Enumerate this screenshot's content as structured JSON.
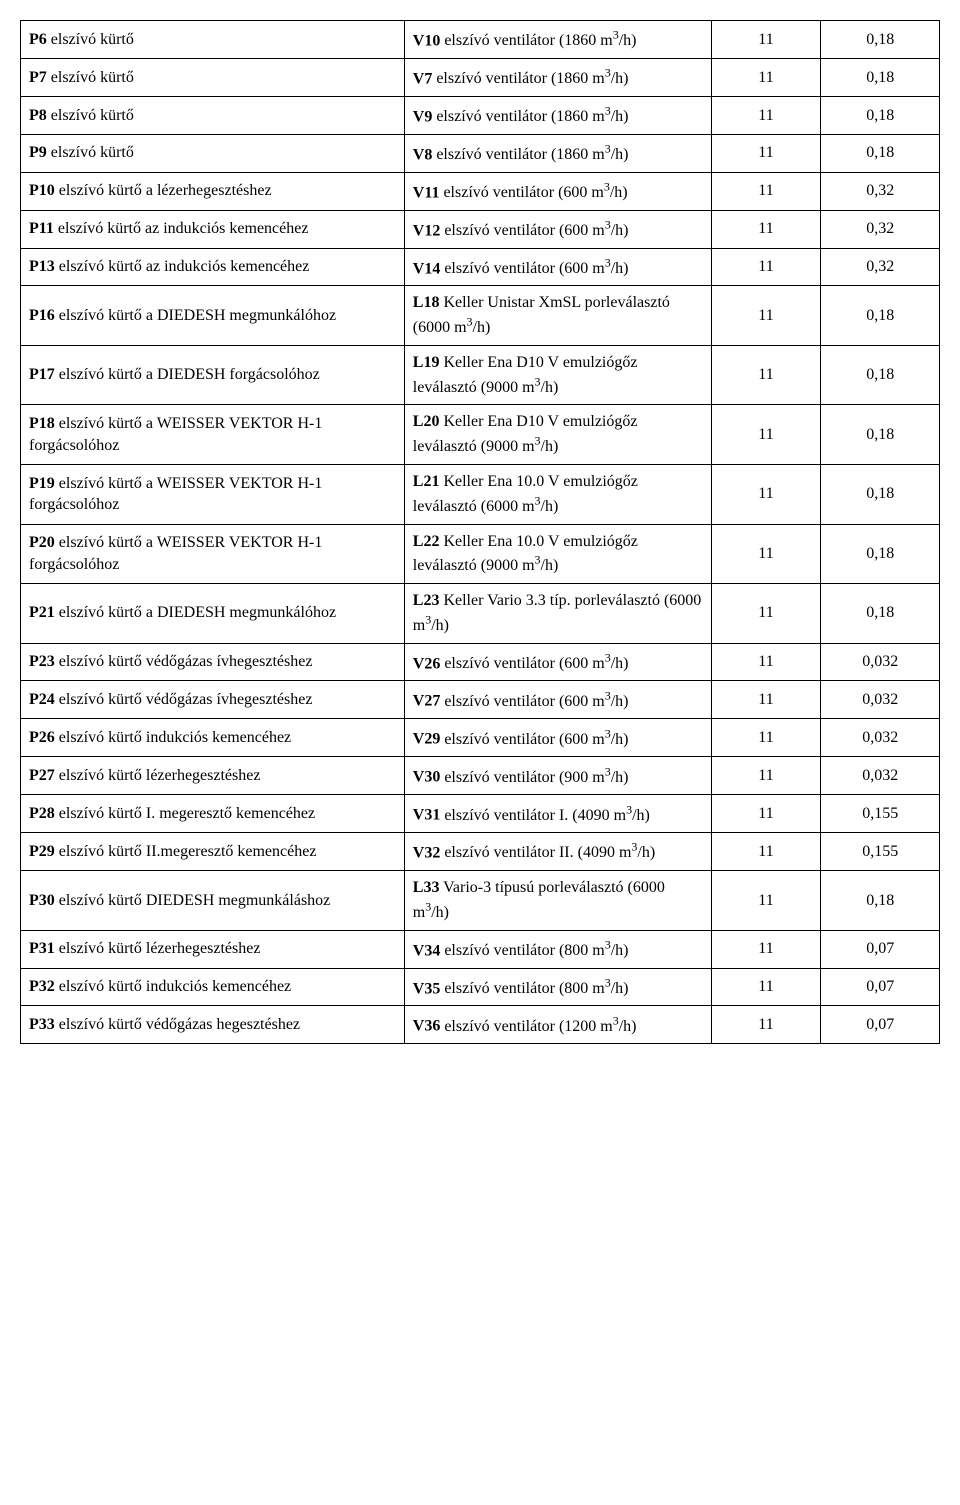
{
  "table": {
    "font_family": "Times New Roman",
    "font_size_pt": 12,
    "border_color": "#000000",
    "background_color": "#ffffff",
    "text_color": "#000000",
    "column_widths_pct": [
      43,
      34,
      11,
      12
    ],
    "rows": [
      {
        "c1_bold": "P6",
        "c1_rest": " elszívó kürtő",
        "c2_bold": "V10",
        "c2_rest": " elszívó ventilátor (1860 m³/h)",
        "c3": "11",
        "c4": "0,18"
      },
      {
        "c1_bold": "P7",
        "c1_rest": " elszívó kürtő",
        "c2_bold": "V7",
        "c2_rest": " elszívó ventilátor (1860 m³/h)",
        "c3": "11",
        "c4": "0,18"
      },
      {
        "c1_bold": "P8",
        "c1_rest": " elszívó kürtő",
        "c2_bold": "V9",
        "c2_rest": " elszívó ventilátor (1860 m³/h)",
        "c3": "11",
        "c4": "0,18"
      },
      {
        "c1_bold": "P9",
        "c1_rest": " elszívó kürtő",
        "c2_bold": "V8",
        "c2_rest": " elszívó ventilátor (1860 m³/h)",
        "c3": "11",
        "c4": "0,18"
      },
      {
        "c1_bold": "P10",
        "c1_rest": " elszívó kürtő a lézerhegesztéshez",
        "c2_bold": "V11",
        "c2_rest": " elszívó ventilátor (600 m³/h)",
        "c3": "11",
        "c4": "0,32"
      },
      {
        "c1_bold": "P11",
        "c1_rest": " elszívó kürtő az indukciós kemencéhez",
        "c2_bold": "V12",
        "c2_rest": " elszívó ventilátor (600 m³/h)",
        "c3": "11",
        "c4": "0,32"
      },
      {
        "c1_bold": "P13",
        "c1_rest": " elszívó kürtő az indukciós kemencéhez",
        "c2_bold": "V14",
        "c2_rest": " elszívó ventilátor (600 m³/h)",
        "c3": "11",
        "c4": "0,32"
      },
      {
        "c1_bold": "P16",
        "c1_rest": " elszívó kürtő a DIEDESH megmunkálóhoz",
        "c2_bold": "L18",
        "c2_rest": " Keller Unistar XmSL porleválasztó (6000 m³/h)",
        "c3": "11",
        "c4": "0,18"
      },
      {
        "c1_bold": "P17",
        "c1_rest": " elszívó kürtő a DIEDESH forgácsolóhoz",
        "c2_bold": "L19",
        "c2_rest": " Keller Ena D10 V emulziógőz leválasztó (9000 m³/h)",
        "c3": "11",
        "c4": "0,18"
      },
      {
        "c1_bold": "P18",
        "c1_rest": " elszívó kürtő a WEISSER VEKTOR H-1 forgácsolóhoz",
        "c2_bold": "L20",
        "c2_rest": " Keller Ena D10 V emulziógőz leválasztó (9000 m³/h)",
        "c3": "11",
        "c4": "0,18"
      },
      {
        "c1_bold": "P19",
        "c1_rest": " elszívó kürtő a WEISSER VEKTOR H-1 forgácsolóhoz",
        "c2_bold": "L21",
        "c2_rest": " Keller Ena 10.0 V emulziógőz leválasztó (6000 m³/h)",
        "c3": "11",
        "c4": "0,18"
      },
      {
        "c1_bold": "P20",
        "c1_rest": " elszívó kürtő a WEISSER VEKTOR H-1 forgácsolóhoz",
        "c2_bold": "L22",
        "c2_rest": " Keller Ena 10.0 V emulziógőz leválasztó (9000 m³/h)",
        "c3": "11",
        "c4": "0,18"
      },
      {
        "c1_bold": "P21",
        "c1_rest": " elszívó kürtő a DIEDESH megmunkálóhoz",
        "c2_bold": "L23",
        "c2_rest": " Keller Vario 3.3 típ. porleválasztó (6000 m³/h)",
        "c3": "11",
        "c4": "0,18"
      },
      {
        "c1_bold": "P23",
        "c1_rest": " elszívó kürtő védőgázas ívhegesztéshez",
        "c2_bold": "V26",
        "c2_rest": " elszívó ventilátor (600 m³/h)",
        "c3": "11",
        "c4": "0,032"
      },
      {
        "c1_bold": "P24",
        "c1_rest": " elszívó kürtő védőgázas ívhegesztéshez",
        "c2_bold": "V27",
        "c2_rest": " elszívó ventilátor (600 m³/h)",
        "c3": "11",
        "c4": "0,032"
      },
      {
        "c1_bold": "P26",
        "c1_rest": " elszívó kürtő indukciós kemencéhez",
        "c2_bold": "V29",
        "c2_rest": " elszívó ventilátor (600 m³/h)",
        "c3": "11",
        "c4": "0,032"
      },
      {
        "c1_bold": "P27",
        "c1_rest": " elszívó kürtő lézerhegesztéshez",
        "c2_bold": "V30",
        "c2_rest": " elszívó ventilátor (900 m³/h)",
        "c3": "11",
        "c4": "0,032"
      },
      {
        "c1_bold": "P28",
        "c1_rest": " elszívó kürtő I. megeresztő kemencéhez",
        "c2_bold": "V31",
        "c2_rest": " elszívó ventilátor I. (4090 m³/h)",
        "c3": "11",
        "c4": "0,155"
      },
      {
        "c1_bold": "P29",
        "c1_rest": " elszívó kürtő II.megeresztő kemencéhez",
        "c2_bold": "V32",
        "c2_rest": " elszívó ventilátor II. (4090 m³/h)",
        "c3": "11",
        "c4": "0,155"
      },
      {
        "c1_bold": "P30",
        "c1_rest": " elszívó kürtő DIEDESH megmunkáláshoz",
        "c2_bold": "L33",
        "c2_rest": " Vario-3 típusú porleválasztó (6000 m³/h)",
        "c3": "11",
        "c4": "0,18"
      },
      {
        "c1_bold": "P31",
        "c1_rest": " elszívó kürtő lézerhegesztéshez",
        "c2_bold": "V34",
        "c2_rest": " elszívó ventilátor (800 m³/h)",
        "c3": "11",
        "c4": "0,07"
      },
      {
        "c1_bold": "P32",
        "c1_rest": " elszívó kürtő indukciós kemencéhez",
        "c2_bold": "V35",
        "c2_rest": " elszívó ventilátor (800 m³/h)",
        "c3": "11",
        "c4": "0,07"
      },
      {
        "c1_bold": "P33",
        "c1_rest": " elszívó kürtő védőgázas hegesztéshez",
        "c2_bold": "V36",
        "c2_rest": " elszívó ventilátor (1200 m³/h)",
        "c3": "11",
        "c4": "0,07"
      }
    ]
  }
}
